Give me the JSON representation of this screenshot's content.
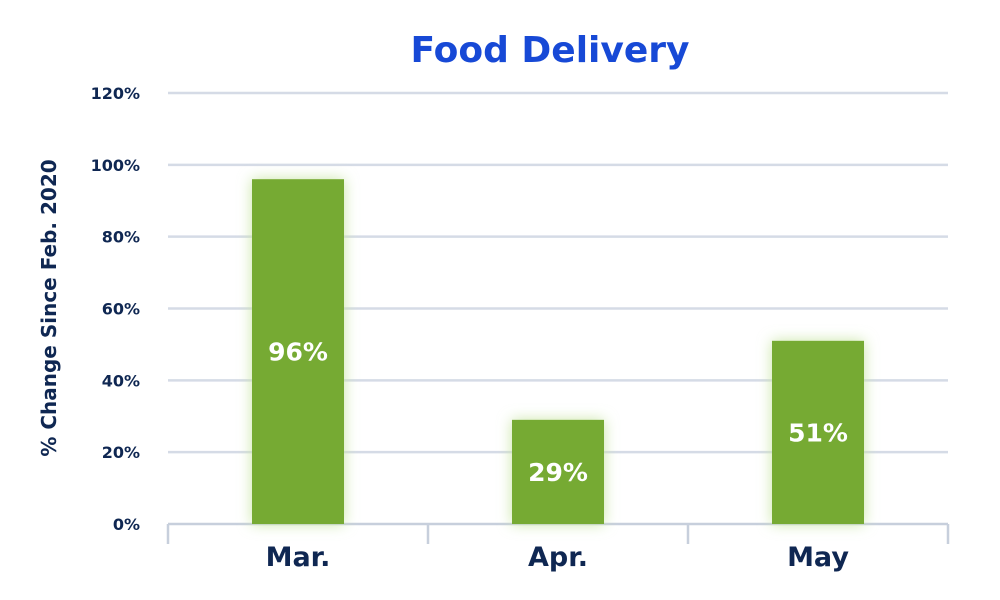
{
  "chart_data": {
    "type": "bar",
    "title": "Food Delivery",
    "xlabel": "",
    "ylabel": "% Change Since Feb. 2020",
    "categories": [
      "Mar.",
      "Apr.",
      "May"
    ],
    "values": [
      96,
      29,
      51
    ],
    "data_labels": [
      "96%",
      "29%",
      "51%"
    ],
    "ylim": [
      0,
      120
    ],
    "yticks": [
      0,
      20,
      40,
      60,
      80,
      100,
      120
    ],
    "ytick_labels": [
      "0%",
      "20%",
      "40%",
      "60%",
      "80%",
      "100%",
      "120%"
    ],
    "grid": true,
    "legend": "none"
  },
  "colors": {
    "title": "#1749d6",
    "bar": "#76aa33",
    "bar_glow": "#c9e5a6",
    "axis_text": "#0f2752",
    "grid": "#d5dbe6",
    "axis_line": "#c7cfdc",
    "data_label": "#ffffff"
  }
}
